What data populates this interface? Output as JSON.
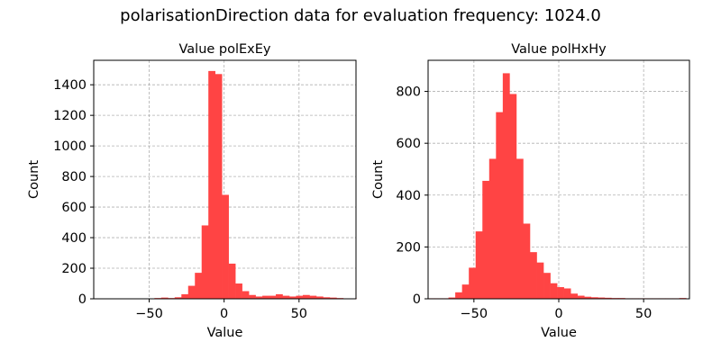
{
  "figure": {
    "title": "polarisationDirection data for evaluation frequency: 1024.0"
  },
  "chart_data": [
    {
      "type": "bar",
      "title": "Value polExEy",
      "xlabel": "Value",
      "ylabel": "Count",
      "xlim": [
        -87,
        88
      ],
      "ylim": [
        0,
        1560
      ],
      "xticks": [
        -50,
        0,
        50
      ],
      "xtick_labels": [
        "−50",
        "0",
        "50"
      ],
      "yticks": [
        0,
        200,
        400,
        600,
        800,
        1000,
        1200,
        1400
      ],
      "grid": true,
      "color": "#ff4444",
      "bin_start": -87,
      "bin_width": 4.5,
      "values": [
        0,
        0,
        0,
        0,
        0,
        0,
        0,
        0,
        0,
        5,
        8,
        5,
        10,
        30,
        85,
        170,
        480,
        1490,
        1470,
        680,
        230,
        100,
        50,
        25,
        15,
        20,
        20,
        30,
        20,
        15,
        20,
        25,
        20,
        15,
        10,
        8,
        5,
        3,
        2
      ]
    },
    {
      "type": "bar",
      "title": "Value polHxHy",
      "xlabel": "Value",
      "ylabel": "Count",
      "xlim": [
        -77,
        77
      ],
      "ylim": [
        0,
        920
      ],
      "xticks": [
        -50,
        0,
        50
      ],
      "xtick_labels": [
        "−50",
        "0",
        "50"
      ],
      "yticks": [
        0,
        200,
        400,
        600,
        800
      ],
      "grid": true,
      "color": "#ff4444",
      "bin_start": -77,
      "bin_width": 4.0,
      "values": [
        2,
        2,
        2,
        5,
        25,
        55,
        120,
        260,
        455,
        540,
        720,
        870,
        790,
        540,
        290,
        180,
        140,
        100,
        60,
        45,
        40,
        20,
        12,
        8,
        6,
        5,
        4,
        3,
        3,
        2,
        2,
        2,
        2,
        2,
        2,
        2,
        2,
        3
      ]
    }
  ]
}
